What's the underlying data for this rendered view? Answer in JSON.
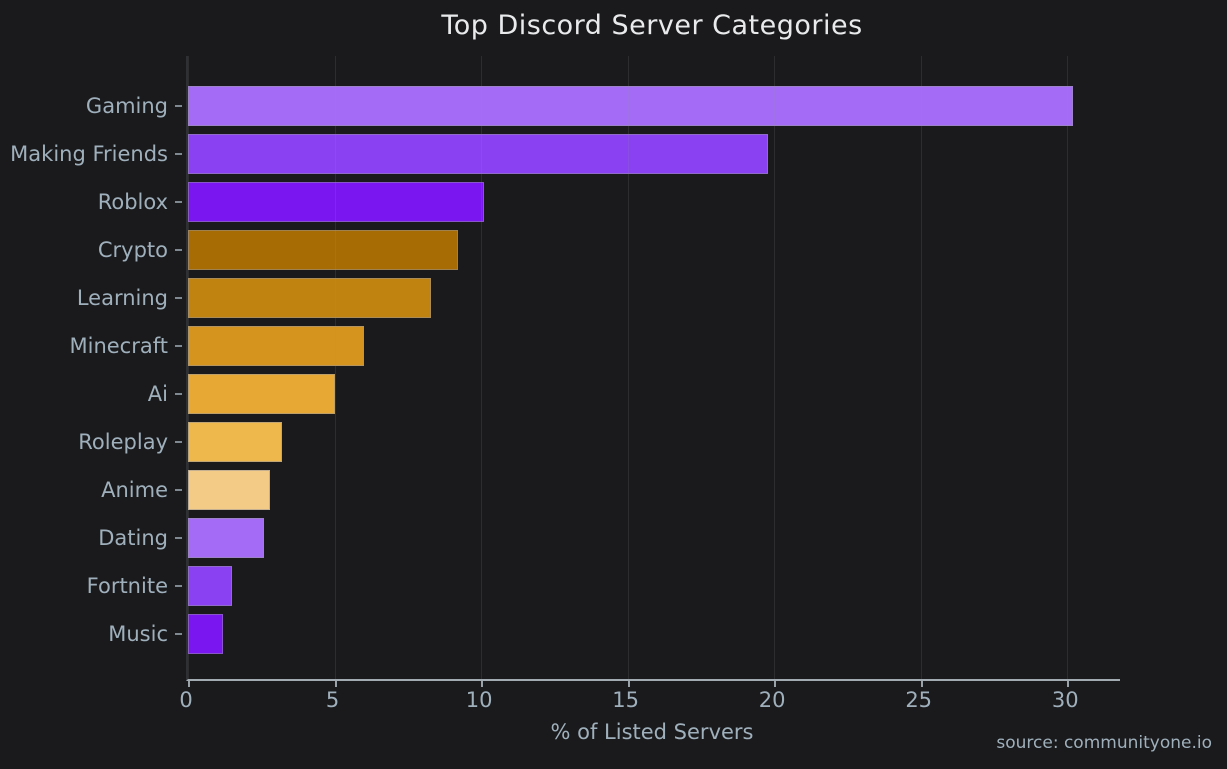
{
  "chart_data": {
    "type": "bar",
    "orientation": "horizontal",
    "title": "Top Discord Server Categories",
    "xlabel": "% of Listed Servers",
    "ylabel": "",
    "source": "source: communityone.io",
    "categories": [
      "Gaming",
      "Making Friends",
      "Roblox",
      "Crypto",
      "Learning",
      "Minecraft",
      "Ai",
      "Roleplay",
      "Anime",
      "Dating",
      "Fortnite",
      "Music"
    ],
    "values": [
      30.2,
      19.8,
      10.1,
      9.2,
      8.3,
      6.0,
      5.0,
      3.2,
      2.8,
      2.6,
      1.5,
      1.2
    ],
    "bar_colors": [
      "#a46cf6",
      "#8a41f2",
      "#7a16f0",
      "#a86c05",
      "#c08310",
      "#d4941e",
      "#e8a834",
      "#eeb84d",
      "#f4cb86",
      "#a46cf6",
      "#8a41f2",
      "#7a16f0"
    ],
    "xticks": [
      0,
      5,
      10,
      15,
      20,
      25,
      30
    ],
    "xlim": [
      0,
      31.8
    ],
    "grid": true,
    "legend": false
  },
  "colors": {
    "background": "#1a1a1c",
    "title_text": "#e8eaec",
    "axis_text": "#9fb0bc",
    "bottom_spine": "#a3abb2",
    "left_spine": "#2e3134",
    "gridline": "rgba(150,150,155,0.16)"
  }
}
